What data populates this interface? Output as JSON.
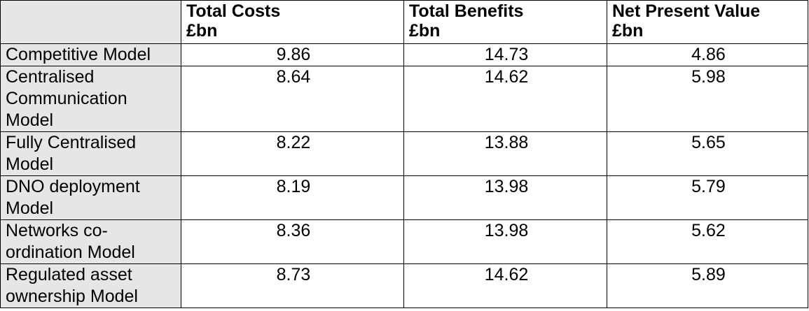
{
  "table": {
    "columns": [
      {
        "line1": "",
        "line2": ""
      },
      {
        "line1": "Total Costs",
        "line2": "£bn"
      },
      {
        "line1": "Total Benefits",
        "line2": "£bn"
      },
      {
        "line1": "Net Present Value",
        "line2": "£bn"
      }
    ],
    "rows": [
      {
        "label": "Competitive Model",
        "total_costs": "9.86",
        "total_benefits": "14.73",
        "npv": "4.86"
      },
      {
        "label": "Centralised Communication Model",
        "total_costs": "8.64",
        "total_benefits": "14.62",
        "npv": "5.98"
      },
      {
        "label": "Fully Centralised Model",
        "total_costs": "8.22",
        "total_benefits": "13.88",
        "npv": "5.65"
      },
      {
        "label": "DNO deployment Model",
        "total_costs": "8.19",
        "total_benefits": "13.98",
        "npv": "5.79"
      },
      {
        "label": "Networks co-ordination Model",
        "total_costs": "8.36",
        "total_benefits": "13.98",
        "npv": "5.62"
      },
      {
        "label": "Regulated asset ownership Model",
        "total_costs": "8.73",
        "total_benefits": "14.62",
        "npv": "5.89"
      }
    ]
  }
}
